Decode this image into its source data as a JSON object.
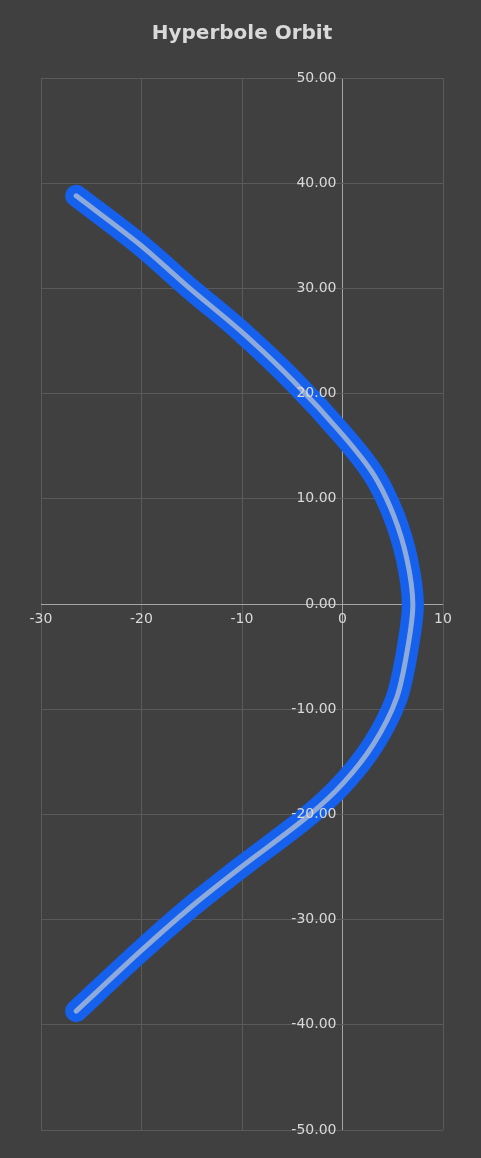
{
  "chart_data": {
    "type": "line",
    "title": "Hyperbole Orbit",
    "series": [
      {
        "color": "#1560ec",
        "x": [
          -26.5,
          -20.2,
          -15.2,
          -10.2,
          -4.9,
          0,
          3.1,
          5.1,
          6.4,
          7.0,
          6.5,
          5.4,
          3.1,
          0,
          -3.6,
          -10.2,
          -15.2,
          -20.2,
          -26.5
        ],
        "values": [
          38.8,
          34.2,
          30.0,
          26.0,
          21.2,
          16.1,
          12.3,
          8.4,
          4.3,
          0,
          -4.1,
          -8.9,
          -13.3,
          -17.1,
          -20.3,
          -25.1,
          -28.9,
          -33.1,
          -38.7
        ]
      },
      {
        "color": "#8eaadb",
        "x": [
          -26.5,
          -20.2,
          -15.2,
          -10.2,
          -4.9,
          0,
          3.1,
          5.1,
          6.4,
          7.0,
          6.5,
          5.4,
          3.1,
          0,
          -3.6,
          -10.2,
          -15.2,
          -20.2,
          -26.5
        ],
        "values": [
          38.8,
          34.2,
          30.0,
          26.0,
          21.2,
          16.1,
          12.3,
          8.4,
          4.3,
          0,
          -4.1,
          -8.9,
          -13.3,
          -17.1,
          -20.3,
          -25.1,
          -28.9,
          -33.1,
          -38.7
        ]
      }
    ],
    "xlim": [
      -30,
      10
    ],
    "xticks": [
      -30,
      -20,
      -10,
      0,
      10
    ],
    "ylim": [
      -50,
      50
    ],
    "yticks": [
      {
        "value": 50,
        "label": "50.00"
      },
      {
        "value": 40,
        "label": "40.00"
      },
      {
        "value": 30,
        "label": "30.00"
      },
      {
        "value": 20,
        "label": "20.00"
      },
      {
        "value": 10,
        "label": "10.00"
      },
      {
        "value": 0,
        "label": "0.00"
      },
      {
        "value": -10,
        "label": "-10.00"
      },
      {
        "value": -20,
        "label": "-20.00"
      },
      {
        "value": -30,
        "label": "-30.00"
      },
      {
        "value": -40,
        "label": "-40.00"
      },
      {
        "value": -50,
        "label": "-50.00"
      }
    ],
    "grid": true,
    "legend": false,
    "marker": "none",
    "line_style": "solid"
  }
}
